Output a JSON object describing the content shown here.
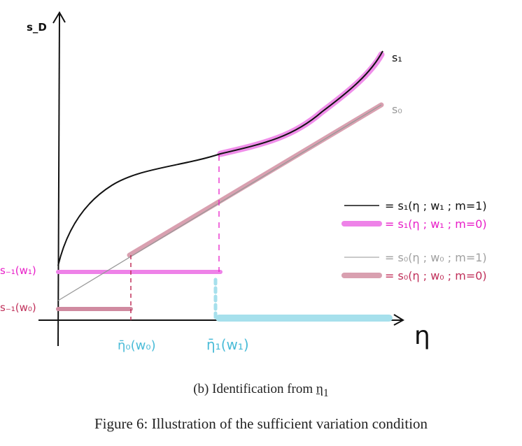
{
  "figure": {
    "subcaption_prefix": "(b) Identification from ",
    "subcaption_symbol": "η",
    "subcaption_sub": "1",
    "caption": "Figure 6: Illustration of the sufficient variation condition"
  },
  "diagram": {
    "y_axis_label": "s_D",
    "x_axis_label": "η",
    "curve_labels": {
      "s1": "s₁",
      "s0": "s₀"
    },
    "y_marks": [
      "s₋₁(w₁)",
      "s₋₁(w₀)"
    ],
    "x_marks": [
      "η̄₀(w₀)",
      "η̄₁(w₁)"
    ],
    "legend": [
      {
        "label": "= s₁(η ; w₁ ; m=1)",
        "color": "#111111"
      },
      {
        "label": "= s₁(η ; w₁ ; m=0)",
        "color": "#e81ec8"
      },
      {
        "label": "= s₀(η ; w₀ ; m=1)",
        "color": "#a0a0a0"
      },
      {
        "label": "= s₀(η ; w₀ ; m=0)",
        "color": "#c0305a"
      }
    ],
    "colors": {
      "black": "#111111",
      "magenta": "#ee82e8",
      "gray": "#a0a0a0",
      "rose": "#d9a0b0",
      "cyan": "#a6e0ec"
    }
  }
}
